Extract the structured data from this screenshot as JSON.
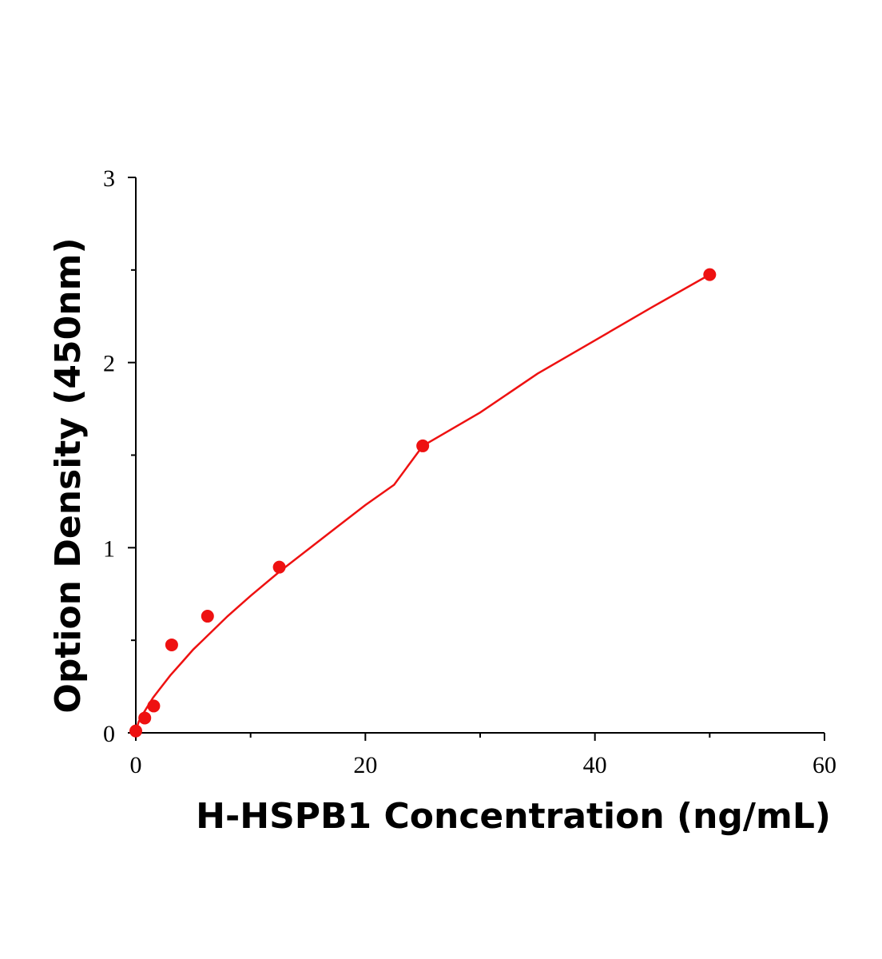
{
  "chart_data": {
    "type": "scatter",
    "title": "",
    "xlabel": "H-HSPB1 Concentration (ng/mL)",
    "ylabel": "Option Density (450nm)",
    "xlim": [
      0,
      60
    ],
    "ylim": [
      0,
      3
    ],
    "x_ticks": [
      0,
      20,
      40,
      60
    ],
    "x_minor_ticks": [
      10,
      30,
      50
    ],
    "y_ticks": [
      0,
      1,
      2,
      3
    ],
    "y_minor_ticks": [
      0.5,
      1.5,
      2.5
    ],
    "x_tick_labels": [
      "0",
      "20",
      "40",
      "60"
    ],
    "y_tick_labels": [
      "0",
      "1",
      "2",
      "3"
    ],
    "grid": false,
    "legend": "none",
    "color": "#ee1111",
    "series": [
      {
        "points": {
          "x": [
            0,
            0.78,
            1.56,
            3.125,
            6.25,
            12.5,
            25,
            50
          ],
          "y": [
            0.01,
            0.08,
            0.145,
            0.475,
            0.63,
            0.895,
            1.55,
            2.475
          ]
        },
        "fit_curve": {
          "x": [
            0,
            0.25,
            0.5,
            1,
            1.5,
            2,
            3,
            4,
            5,
            6,
            8,
            10,
            12.5,
            15,
            17.5,
            20,
            22.5,
            25,
            30,
            35,
            40,
            45,
            50
          ],
          "y": [
            0.01,
            0.06,
            0.09,
            0.14,
            0.19,
            0.23,
            0.31,
            0.38,
            0.45,
            0.51,
            0.63,
            0.74,
            0.87,
            0.99,
            1.11,
            1.23,
            1.34,
            1.55,
            1.73,
            1.94,
            2.12,
            2.3,
            2.475
          ]
        }
      }
    ]
  }
}
